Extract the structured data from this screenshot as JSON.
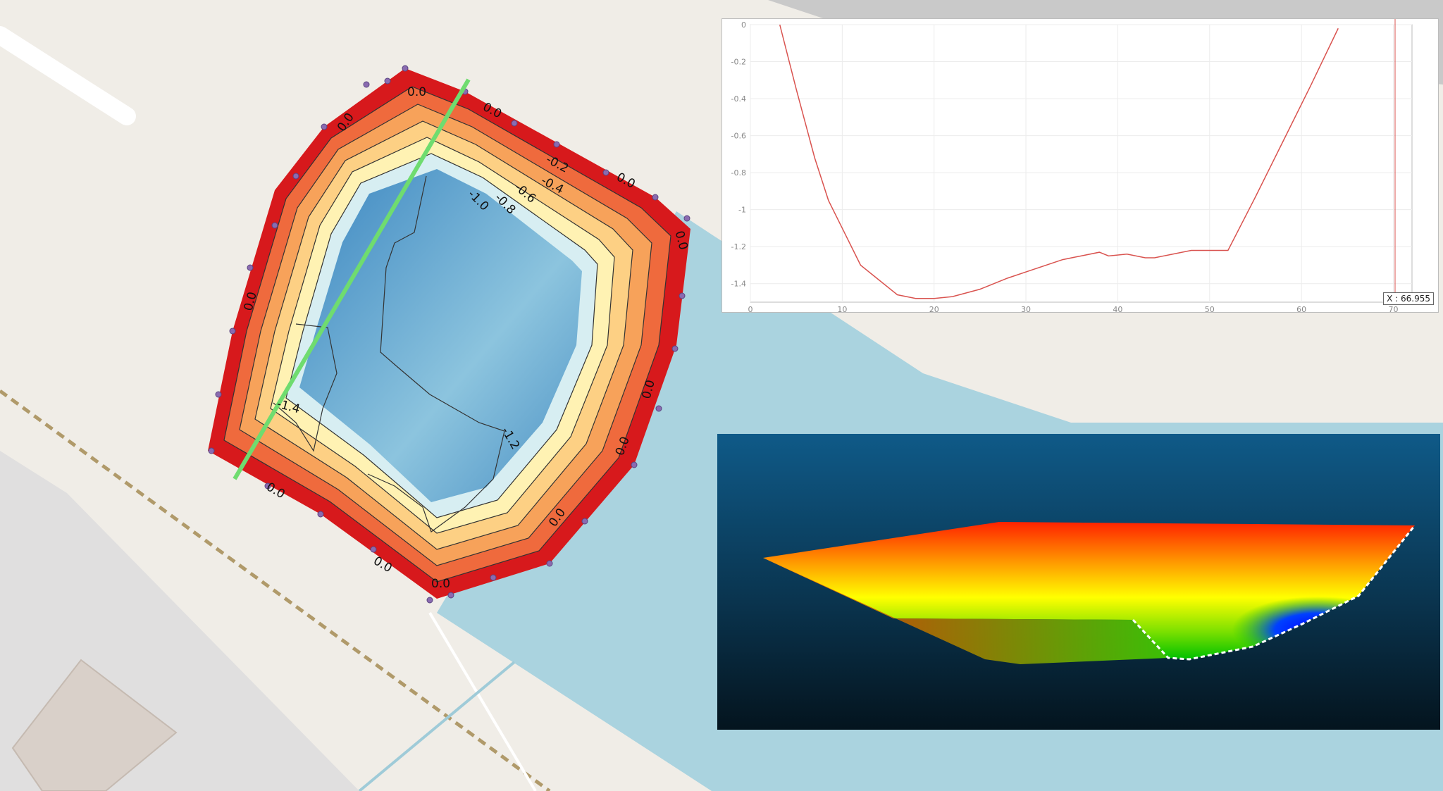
{
  "contour_map": {
    "labels": [
      "0.0",
      "0.0",
      "0.0",
      "0.0",
      "0.0",
      "0.0",
      "0.0",
      "0.0",
      "0.0",
      "0.0",
      "0.0",
      "-0.2",
      "-0.4",
      "-0.6",
      "-0.8",
      "-1.0",
      "-1.2",
      "-1.4"
    ],
    "colors": {
      "shallow": "#d7191c",
      "mid": "#ffffbf",
      "deep": "#2c7bb6",
      "profile_line": "#6fdc6f",
      "water": "#aad3df"
    }
  },
  "profile_chart": {
    "x_readout": "X : 66.955",
    "x_ticks": [
      "0",
      "10",
      "20",
      "30",
      "40",
      "50",
      "60",
      "70"
    ],
    "y_ticks": [
      "0",
      "-0.2",
      "-0.4",
      "-0.6",
      "-0.8",
      "-1",
      "-1.2",
      "-1.4"
    ]
  },
  "chart_data": {
    "type": "line",
    "title": "",
    "xlabel": "",
    "ylabel": "",
    "xlim": [
      0,
      70
    ],
    "ylim": [
      -1.5,
      0
    ],
    "grid": true,
    "series": [
      {
        "color": "#d9534f",
        "x": [
          3.2,
          5,
          7,
          8.5,
          10,
          12,
          14,
          16,
          18,
          20,
          22,
          25,
          28,
          31,
          34,
          36,
          38,
          39,
          41,
          43,
          44,
          46,
          48,
          50,
          52,
          55,
          58,
          61,
          64
        ],
        "y": [
          0,
          -0.35,
          -0.72,
          -0.95,
          -1.1,
          -1.3,
          -1.38,
          -1.46,
          -1.48,
          -1.48,
          -1.47,
          -1.43,
          -1.37,
          -1.32,
          -1.27,
          -1.25,
          -1.23,
          -1.25,
          -1.24,
          -1.26,
          -1.26,
          -1.24,
          -1.22,
          -1.22,
          -1.22,
          -0.93,
          -0.63,
          -0.33,
          -0.02
        ]
      }
    ]
  }
}
